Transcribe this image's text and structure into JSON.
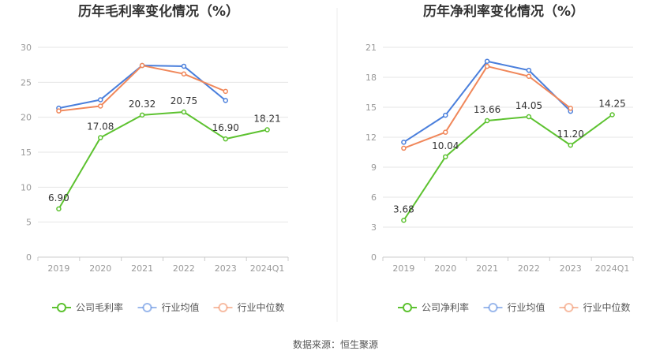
{
  "source_text": "数据来源：恒生聚源",
  "chart_data": [
    {
      "type": "line",
      "title": "历年毛利率变化情况（%）",
      "xlabel": "",
      "ylabel": "",
      "categories": [
        "2019",
        "2020",
        "2021",
        "2022",
        "2023",
        "2024Q1"
      ],
      "ylim": [
        0,
        30
      ],
      "yticks": [
        0,
        5,
        10,
        15,
        20,
        25,
        30
      ],
      "grid": true,
      "legend_position": "bottom",
      "series": [
        {
          "name": "公司毛利率",
          "color": "#5dc230",
          "labeled": true,
          "values": [
            6.9,
            17.08,
            20.32,
            20.75,
            16.9,
            18.21
          ],
          "labels": [
            "6.90",
            "17.08",
            "20.32",
            "20.75",
            "16.90",
            "18.21"
          ]
        },
        {
          "name": "行业均值",
          "color": "#4a7fdc",
          "labeled": false,
          "values": [
            21.3,
            22.5,
            27.4,
            27.3,
            22.4,
            null
          ]
        },
        {
          "name": "行业中位数",
          "color": "#f0875a",
          "labeled": false,
          "values": [
            20.9,
            21.6,
            27.4,
            26.2,
            23.7,
            null
          ]
        }
      ]
    },
    {
      "type": "line",
      "title": "历年净利率变化情况（%）",
      "xlabel": "",
      "ylabel": "",
      "categories": [
        "2019",
        "2020",
        "2021",
        "2022",
        "2023",
        "2024Q1"
      ],
      "ylim": [
        0,
        21
      ],
      "yticks": [
        0,
        3,
        6,
        9,
        12,
        15,
        18,
        21
      ],
      "grid": true,
      "legend_position": "bottom",
      "series": [
        {
          "name": "公司净利率",
          "color": "#5dc230",
          "labeled": true,
          "values": [
            3.68,
            10.04,
            13.66,
            14.05,
            11.2,
            14.25
          ],
          "labels": [
            "3.68",
            "10.04",
            "13.66",
            "14.05",
            "11.20",
            "14.25"
          ]
        },
        {
          "name": "行业均值",
          "color": "#4a7fdc",
          "labeled": false,
          "values": [
            11.5,
            14.2,
            19.6,
            18.7,
            14.6,
            null
          ]
        },
        {
          "name": "行业中位数",
          "color": "#f0875a",
          "labeled": false,
          "values": [
            10.9,
            12.5,
            19.1,
            18.1,
            14.9,
            null
          ]
        }
      ]
    }
  ]
}
